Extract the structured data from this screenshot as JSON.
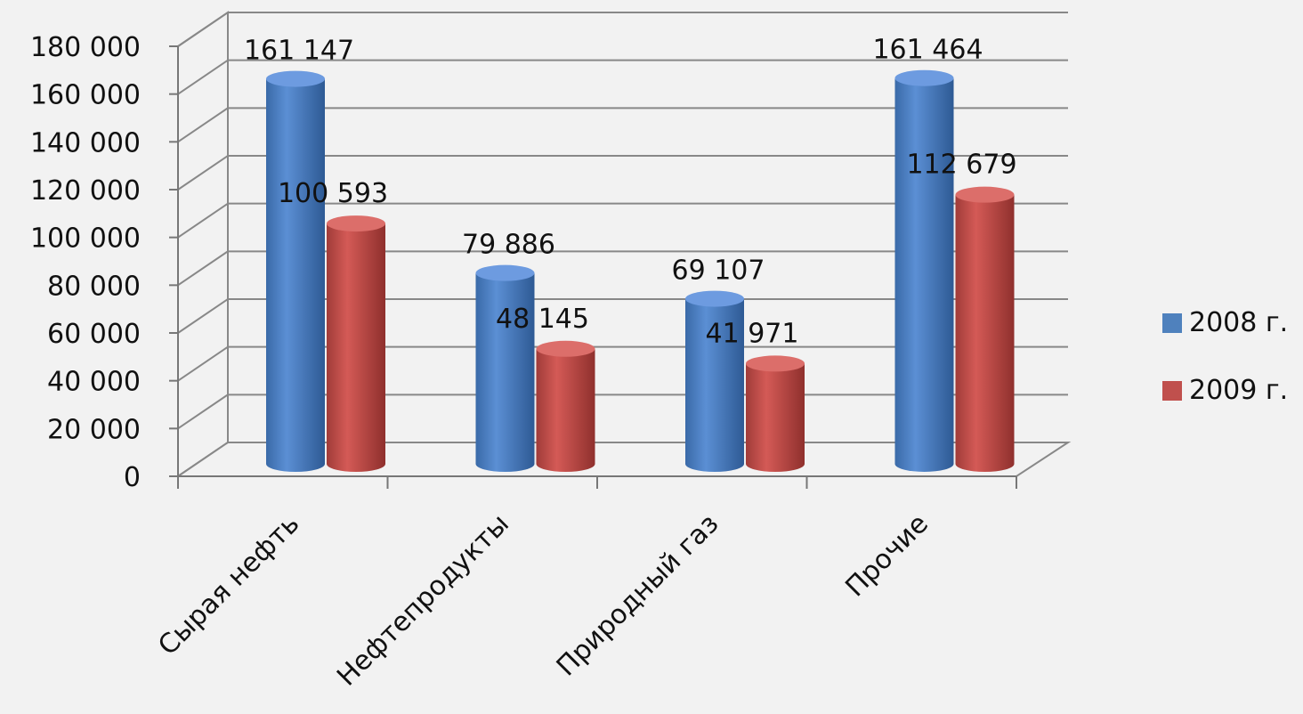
{
  "chart_data": {
    "type": "bar",
    "categories": [
      "Сырая нефть",
      "Нефтепродукты",
      "Природный газ",
      "Прочие"
    ],
    "series": [
      {
        "name": "2008 г.",
        "color": "#4f81bd",
        "values": [
          161147,
          79886,
          69107,
          161464
        ],
        "labels": [
          "161 147",
          "79 886",
          "69 107",
          "161 464"
        ]
      },
      {
        "name": "2009 г.",
        "color": "#c0504d",
        "values": [
          100593,
          48145,
          41971,
          112679
        ],
        "labels": [
          "100 593",
          "48 145",
          "41 971",
          "112 679"
        ]
      }
    ],
    "ylim": [
      0,
      180000
    ],
    "yticks": [
      0,
      20000,
      40000,
      60000,
      80000,
      100000,
      120000,
      140000,
      160000,
      180000
    ],
    "ytick_labels": [
      "0",
      "20 000",
      "40 000",
      "60 000",
      "80 000",
      "100 000",
      "120 000",
      "140 000",
      "160 000",
      "180 000"
    ],
    "grid": true,
    "legend": "right",
    "style": "3d-cylinder"
  }
}
